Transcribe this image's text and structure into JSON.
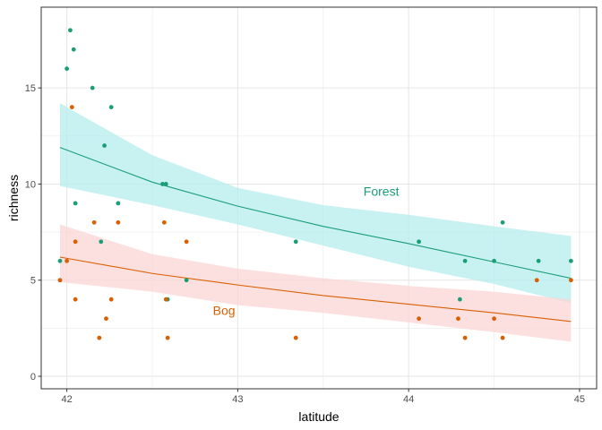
{
  "chart_data": {
    "type": "scatter",
    "title": "",
    "xlabel": "latitude",
    "ylabel": "richness",
    "xlim": [
      41.85,
      45.1
    ],
    "ylim": [
      -0.65,
      19.2
    ],
    "x_ticks": [
      42,
      43,
      44,
      45
    ],
    "y_ticks": [
      0,
      5,
      10,
      15
    ],
    "x_tick_labels": [
      "42",
      "43",
      "44",
      "45"
    ],
    "y_tick_labels": [
      "0",
      "5",
      "10",
      "15"
    ],
    "grid": true,
    "legend": "none",
    "series": [
      {
        "name": "Forest",
        "color": "#1b9e77",
        "ribbon_color": "#b5ecee",
        "points": [
          [
            41.96,
            6
          ],
          [
            42.0,
            16
          ],
          [
            42.02,
            18
          ],
          [
            42.04,
            17
          ],
          [
            42.05,
            9
          ],
          [
            42.15,
            15
          ],
          [
            42.2,
            7
          ],
          [
            42.22,
            12
          ],
          [
            42.26,
            14
          ],
          [
            42.3,
            9
          ],
          [
            42.56,
            10
          ],
          [
            42.58,
            10
          ],
          [
            42.59,
            4
          ],
          [
            42.7,
            5
          ],
          [
            43.34,
            7
          ],
          [
            44.06,
            7
          ],
          [
            44.3,
            4
          ],
          [
            44.33,
            6
          ],
          [
            44.5,
            6
          ],
          [
            44.55,
            8
          ],
          [
            44.76,
            6
          ],
          [
            44.95,
            6
          ]
        ],
        "fit": [
          [
            41.96,
            11.9
          ],
          [
            42.5,
            10.1
          ],
          [
            43.0,
            8.85
          ],
          [
            43.5,
            7.8
          ],
          [
            44.0,
            6.9
          ],
          [
            44.5,
            5.95
          ],
          [
            44.95,
            5.1
          ]
        ],
        "ribbon_upper": [
          [
            41.96,
            14.2
          ],
          [
            42.5,
            11.5
          ],
          [
            43.0,
            9.8
          ],
          [
            43.5,
            8.9
          ],
          [
            44.0,
            8.4
          ],
          [
            44.5,
            7.8
          ],
          [
            44.95,
            7.3
          ]
        ],
        "ribbon_lower": [
          [
            41.96,
            9.9
          ],
          [
            42.5,
            8.9
          ],
          [
            43.0,
            7.9
          ],
          [
            43.5,
            6.8
          ],
          [
            44.0,
            5.7
          ],
          [
            44.5,
            4.8
          ],
          [
            44.95,
            3.8
          ]
        ]
      },
      {
        "name": "Bog",
        "color": "#d95f02",
        "ribbon_color": "#fbd6d6",
        "points": [
          [
            41.96,
            5
          ],
          [
            42.0,
            6
          ],
          [
            42.03,
            14
          ],
          [
            42.05,
            7
          ],
          [
            42.05,
            4
          ],
          [
            42.16,
            8
          ],
          [
            42.19,
            2
          ],
          [
            42.23,
            3
          ],
          [
            42.26,
            4
          ],
          [
            42.3,
            8
          ],
          [
            42.57,
            8
          ],
          [
            42.58,
            4
          ],
          [
            42.59,
            2
          ],
          [
            42.7,
            7
          ],
          [
            43.34,
            2
          ],
          [
            44.06,
            3
          ],
          [
            44.29,
            3
          ],
          [
            44.33,
            2
          ],
          [
            44.5,
            3
          ],
          [
            44.55,
            2
          ],
          [
            44.75,
            5
          ],
          [
            44.95,
            5
          ]
        ],
        "fit": [
          [
            41.96,
            6.2
          ],
          [
            42.5,
            5.35
          ],
          [
            43.0,
            4.75
          ],
          [
            43.5,
            4.2
          ],
          [
            44.0,
            3.75
          ],
          [
            44.5,
            3.3
          ],
          [
            44.95,
            2.85
          ]
        ],
        "ribbon_upper": [
          [
            41.96,
            7.9
          ],
          [
            42.5,
            6.35
          ],
          [
            43.0,
            5.6
          ],
          [
            43.5,
            5.1
          ],
          [
            44.0,
            4.7
          ],
          [
            44.5,
            4.4
          ],
          [
            44.95,
            4.0
          ]
        ],
        "ribbon_lower": [
          [
            41.96,
            4.9
          ],
          [
            42.5,
            4.4
          ],
          [
            43.0,
            3.7
          ],
          [
            43.5,
            3.3
          ],
          [
            44.0,
            2.8
          ],
          [
            44.5,
            2.3
          ],
          [
            44.95,
            1.8
          ]
        ]
      }
    ],
    "annotations": [
      {
        "text": "Forest",
        "x": 43.84,
        "y": 9.4,
        "color": "#1b9e77"
      },
      {
        "text": "Bog",
        "x": 42.92,
        "y": 3.2,
        "color": "#d95f02"
      }
    ]
  }
}
